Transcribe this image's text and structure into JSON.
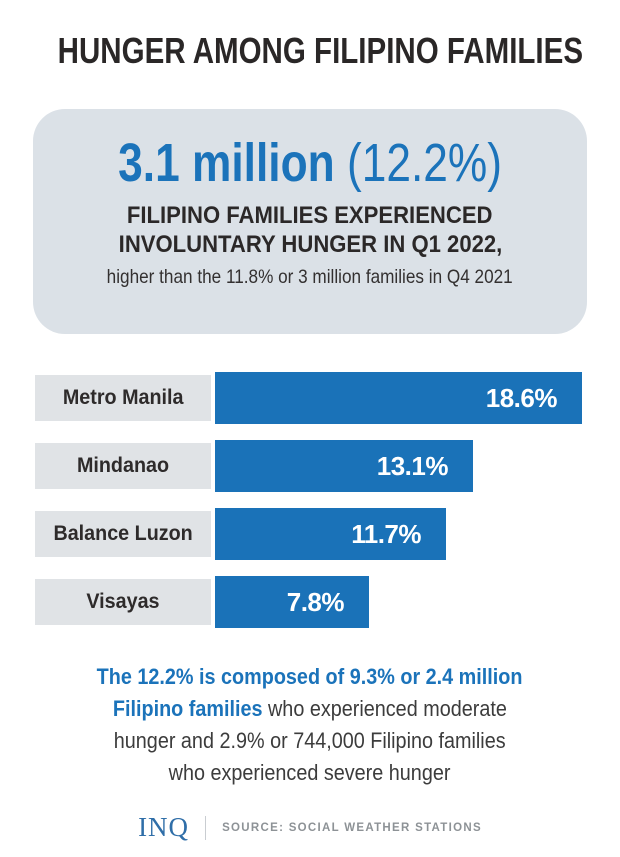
{
  "title": "HUNGER AMONG FILIPINO FAMILIES",
  "summary_box": {
    "headline_number": "3.1 million",
    "headline_percent": "(12.2%)",
    "subhead_line1": "FILIPINO FAMILIES EXPERIENCED",
    "subhead_line2": "INVOLUNTARY HUNGER IN Q1 2022,",
    "comparison": "higher than the 11.8% or 3 million families in Q4 2021"
  },
  "chart_data": {
    "type": "bar",
    "orientation": "horizontal",
    "categories": [
      "Metro Manila",
      "Mindanao",
      "Balance Luzon",
      "Visayas"
    ],
    "values": [
      18.6,
      13.1,
      11.7,
      7.8
    ],
    "value_labels": [
      "18.6%",
      "13.1%",
      "11.7%",
      "7.8%"
    ],
    "xlim": [
      0,
      18.6
    ],
    "value_label_position": "inside-right",
    "grid": false,
    "legend": false,
    "bar_color": "#1A72B8",
    "category_strip_color": "#E0E3E6"
  },
  "footnote": {
    "line1": "The 12.2% is composed of 9.3% or 2.4 million",
    "line2_highlight": "Filipino families ",
    "line2_rest": "who experienced moderate",
    "line3": "hunger and 2.9% or 744,000 Filipino families",
    "line4": "who experienced severe hunger"
  },
  "footer": {
    "logo": "INQ",
    "source": "SOURCE: SOCIAL WEATHER STATIONS"
  },
  "colors": {
    "accent_blue": "#1B73BA",
    "bar_blue": "#1A72B8",
    "box_bg": "#DBE1E7",
    "strip_bg": "#E0E3E6",
    "title_dark": "#2A2727",
    "body_dark": "#3C3C3C",
    "logo_blue": "#2F6EA8",
    "source_gray": "#8D9296",
    "divider_gray": "#C9CDD1",
    "page_bg": "#FFFFFF"
  }
}
